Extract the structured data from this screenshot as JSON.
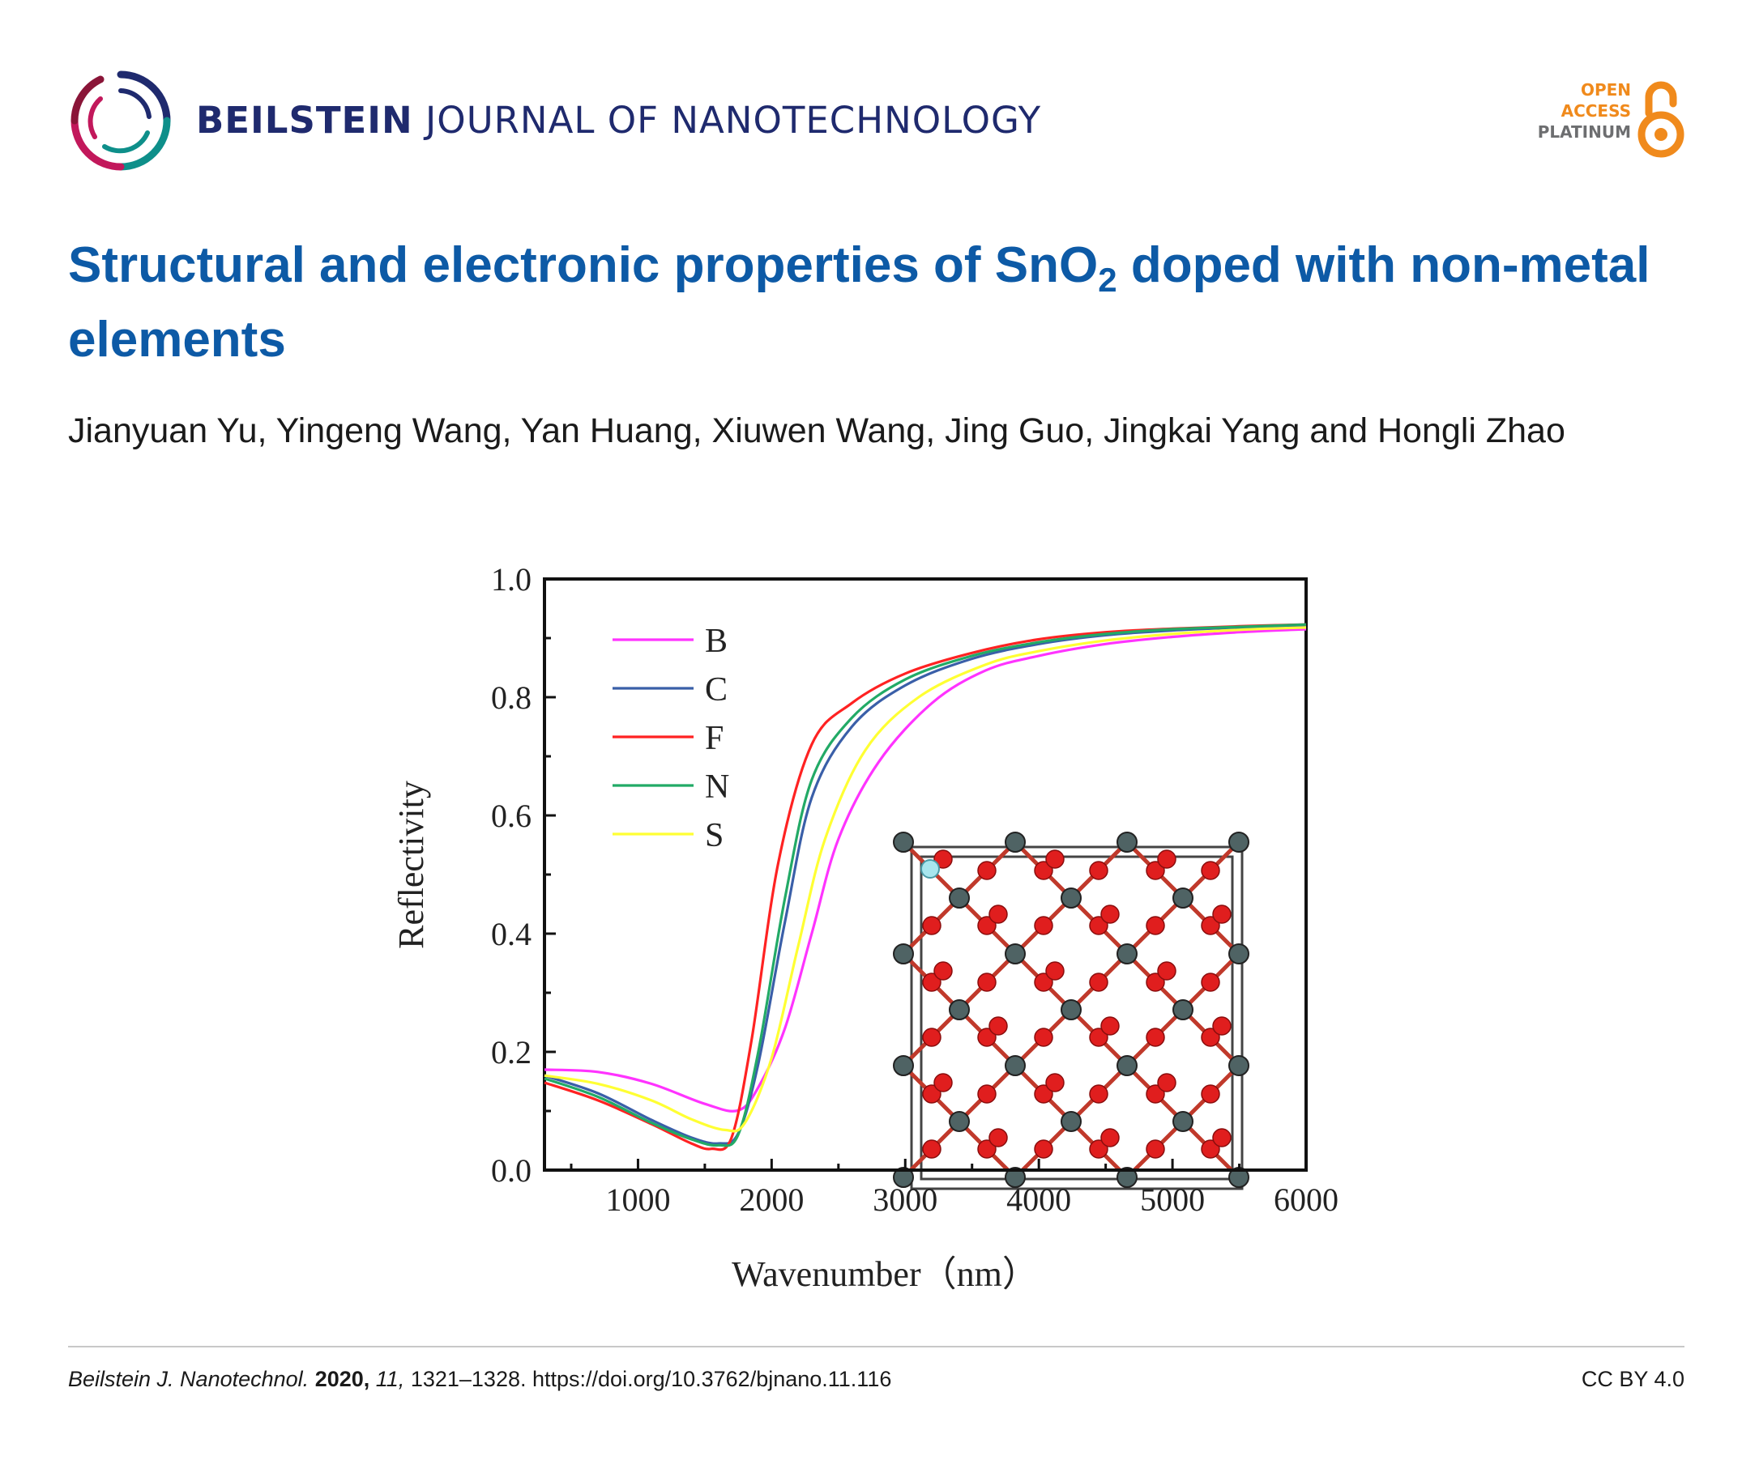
{
  "header": {
    "journal_bold": "BEILSTEIN",
    "journal_rest": "JOURNAL OF NANOTECHNOLOGY",
    "oa_line1": "OPEN",
    "oa_line2": "ACCESS",
    "oa_line3": "PLATINUM",
    "colors": {
      "brand": "#1f2a6e",
      "orange": "#f08a1c",
      "grey": "#6d6e70"
    }
  },
  "article": {
    "title_before": "Structural and electronic properties of SnO",
    "title_sub": "2",
    "title_after": " doped with non-metal elements",
    "authors": "Jianyuan Yu, Yingeng Wang, Yan Huang, Xiuwen Wang, Jing Guo, Jingkai Yang and Hongli Zhao"
  },
  "chart_data": {
    "type": "line",
    "title": "",
    "xlabel": "Wavenumber（nm）",
    "ylabel": "Reflectivity",
    "xlim": [
      300,
      6000
    ],
    "ylim": [
      0.0,
      1.0
    ],
    "xticks": [
      1000,
      2000,
      3000,
      4000,
      5000,
      6000
    ],
    "yticks": [
      "0.0",
      "0.2",
      "0.4",
      "0.6",
      "0.8",
      "1.0"
    ],
    "legend_position": "top-left",
    "series": [
      {
        "name": "B",
        "color": "#ff33ff",
        "points": [
          [
            300,
            0.17
          ],
          [
            700,
            0.166
          ],
          [
            1100,
            0.146
          ],
          [
            1500,
            0.112
          ],
          [
            1750,
            0.101
          ],
          [
            1900,
            0.14
          ],
          [
            2100,
            0.24
          ],
          [
            2300,
            0.4
          ],
          [
            2500,
            0.56
          ],
          [
            2800,
            0.69
          ],
          [
            3200,
            0.79
          ],
          [
            3600,
            0.845
          ],
          [
            4000,
            0.87
          ],
          [
            4500,
            0.89
          ],
          [
            5000,
            0.902
          ],
          [
            5500,
            0.91
          ],
          [
            6000,
            0.915
          ]
        ]
      },
      {
        "name": "C",
        "color": "#3a5fa8",
        "points": [
          [
            300,
            0.16
          ],
          [
            700,
            0.13
          ],
          [
            1100,
            0.085
          ],
          [
            1400,
            0.055
          ],
          [
            1600,
            0.045
          ],
          [
            1750,
            0.062
          ],
          [
            1900,
            0.18
          ],
          [
            2100,
            0.42
          ],
          [
            2300,
            0.63
          ],
          [
            2600,
            0.75
          ],
          [
            3000,
            0.82
          ],
          [
            3500,
            0.865
          ],
          [
            4000,
            0.89
          ],
          [
            4500,
            0.905
          ],
          [
            5000,
            0.913
          ],
          [
            5500,
            0.918
          ],
          [
            6000,
            0.922
          ]
        ]
      },
      {
        "name": "F",
        "color": "#ff2222",
        "points": [
          [
            300,
            0.148
          ],
          [
            700,
            0.118
          ],
          [
            1100,
            0.078
          ],
          [
            1400,
            0.045
          ],
          [
            1550,
            0.036
          ],
          [
            1700,
            0.055
          ],
          [
            1850,
            0.22
          ],
          [
            2050,
            0.52
          ],
          [
            2300,
            0.72
          ],
          [
            2600,
            0.79
          ],
          [
            3000,
            0.84
          ],
          [
            3500,
            0.875
          ],
          [
            4000,
            0.898
          ],
          [
            4500,
            0.91
          ],
          [
            5000,
            0.916
          ],
          [
            5500,
            0.92
          ],
          [
            6000,
            0.923
          ]
        ]
      },
      {
        "name": "N",
        "color": "#22aa66",
        "points": [
          [
            300,
            0.155
          ],
          [
            700,
            0.124
          ],
          [
            1100,
            0.08
          ],
          [
            1400,
            0.052
          ],
          [
            1600,
            0.042
          ],
          [
            1750,
            0.06
          ],
          [
            1900,
            0.2
          ],
          [
            2100,
            0.46
          ],
          [
            2300,
            0.66
          ],
          [
            2600,
            0.765
          ],
          [
            3000,
            0.83
          ],
          [
            3500,
            0.87
          ],
          [
            4000,
            0.893
          ],
          [
            4500,
            0.907
          ],
          [
            5000,
            0.915
          ],
          [
            5500,
            0.919
          ],
          [
            6000,
            0.923
          ]
        ]
      },
      {
        "name": "S",
        "color": "#ffff33",
        "points": [
          [
            300,
            0.16
          ],
          [
            700,
            0.146
          ],
          [
            1100,
            0.118
          ],
          [
            1400,
            0.086
          ],
          [
            1650,
            0.068
          ],
          [
            1800,
            0.08
          ],
          [
            2000,
            0.19
          ],
          [
            2200,
            0.38
          ],
          [
            2400,
            0.56
          ],
          [
            2700,
            0.71
          ],
          [
            3100,
            0.8
          ],
          [
            3600,
            0.855
          ],
          [
            4000,
            0.878
          ],
          [
            4500,
            0.896
          ],
          [
            5000,
            0.907
          ],
          [
            5500,
            0.914
          ],
          [
            6000,
            0.918
          ]
        ]
      }
    ]
  },
  "footer": {
    "journal_abbrev": "Beilstein J. Nanotechnol.",
    "year": "2020,",
    "volume": "11,",
    "pages": "1321–1328.",
    "doi": "https://doi.org/10.3762/bjnano.11.116",
    "license": "CC BY 4.0"
  }
}
